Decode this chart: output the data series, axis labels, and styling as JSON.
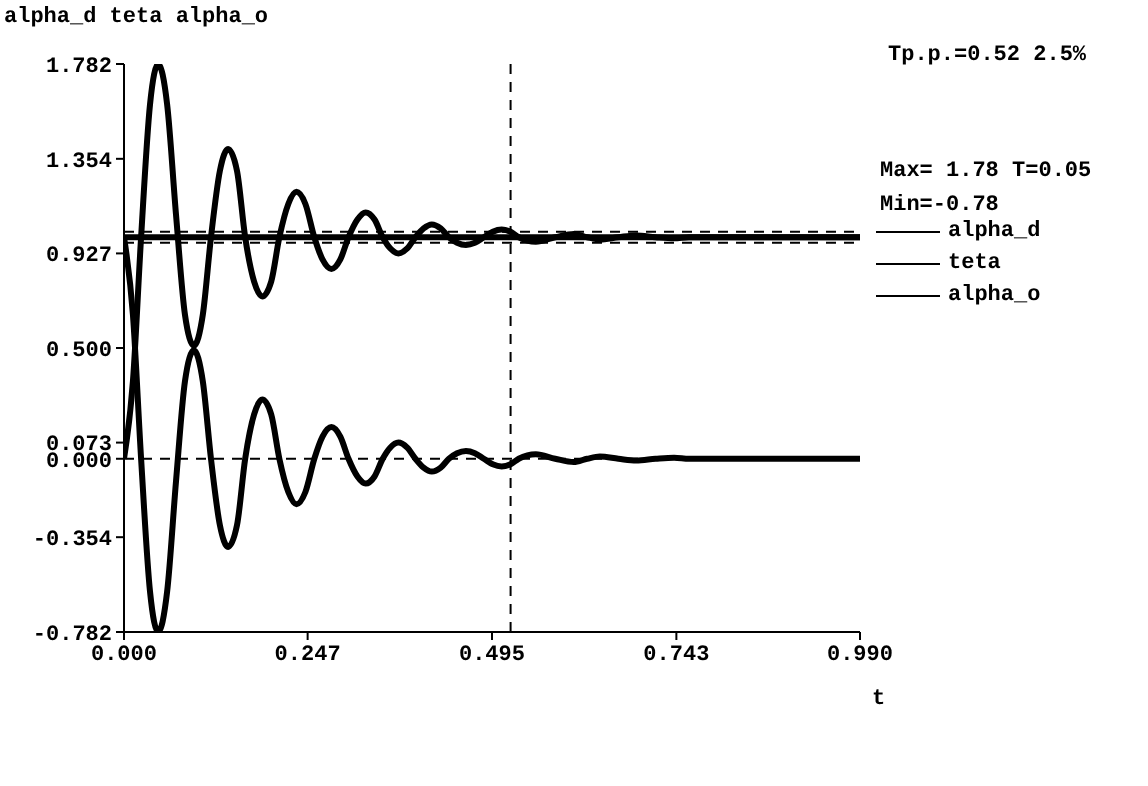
{
  "chart_data": {
    "type": "line",
    "title": "alpha_d teta alpha_o",
    "xlabel": "t",
    "xlim": [
      0,
      0.99
    ],
    "xticks": [
      {
        "value": 0,
        "label": "0.000"
      },
      0.247,
      0.495,
      0.743,
      {
        "value": 0.99,
        "label": "0.990"
      }
    ],
    "ylim": [
      -0.782,
      1.782
    ],
    "yticks": [
      -0.782,
      -0.354,
      {
        "value": 0,
        "label": "0.000"
      },
      0.073,
      {
        "value": 0.5,
        "label": "0.500"
      },
      0.927,
      1.354,
      1.782
    ],
    "legend": "right",
    "marker": "none",
    "line_style": "solid",
    "series": [
      {
        "name": "alpha_d",
        "color": "#000000",
        "x": [
          0,
          0.99
        ],
        "values": [
          1,
          1
        ]
      },
      {
        "name": "teta",
        "color": "#000000",
        "x": [
          0,
          0.012,
          0.023,
          0.035,
          0.046,
          0.058,
          0.07,
          0.082,
          0.094,
          0.106,
          0.117,
          0.129,
          0.14,
          0.152,
          0.163,
          0.175,
          0.186,
          0.198,
          0.209,
          0.221,
          0.232,
          0.244,
          0.256,
          0.267,
          0.279,
          0.291,
          0.302,
          0.314,
          0.325,
          0.337,
          0.348,
          0.358,
          0.369,
          0.381,
          0.392,
          0.403,
          0.414,
          0.426,
          0.437,
          0.448,
          0.46,
          0.472,
          0.484,
          0.496,
          0.508,
          0.52,
          0.531,
          0.554,
          0.58,
          0.605,
          0.623,
          0.64,
          0.665,
          0.689,
          0.715,
          0.74,
          0.76,
          0.99
        ],
        "values": [
          0,
          0.35,
          1,
          1.6,
          1.782,
          1.6,
          1.1,
          0.65,
          0.51,
          0.65,
          1,
          1.3,
          1.398,
          1.3,
          1,
          0.8,
          0.733,
          0.8,
          1,
          1.15,
          1.205,
          1.15,
          1,
          0.9,
          0.857,
          0.9,
          1,
          1.08,
          1.112,
          1.08,
          1,
          0.95,
          0.927,
          0.95,
          1,
          1.04,
          1.058,
          1.04,
          1,
          0.975,
          0.965,
          0.975,
          1,
          1.025,
          1.035,
          1.025,
          1,
          0.98,
          1,
          1.015,
          1,
          0.99,
          1,
          1.008,
          1,
          0.995,
          1,
          1
        ]
      },
      {
        "name": "alpha_o",
        "color": "#000000",
        "x": [
          0,
          0.012,
          0.023,
          0.035,
          0.046,
          0.058,
          0.07,
          0.082,
          0.094,
          0.106,
          0.117,
          0.129,
          0.14,
          0.152,
          0.163,
          0.175,
          0.186,
          0.198,
          0.209,
          0.221,
          0.232,
          0.244,
          0.256,
          0.267,
          0.279,
          0.291,
          0.302,
          0.314,
          0.325,
          0.337,
          0.348,
          0.358,
          0.369,
          0.381,
          0.392,
          0.403,
          0.414,
          0.426,
          0.437,
          0.448,
          0.46,
          0.472,
          0.484,
          0.496,
          0.508,
          0.52,
          0.531,
          0.554,
          0.58,
          0.605,
          0.623,
          0.64,
          0.665,
          0.689,
          0.715,
          0.74,
          0.76,
          0.99
        ],
        "values": [
          1,
          0.65,
          0,
          -0.6,
          -0.782,
          -0.6,
          -0.1,
          0.35,
          0.49,
          0.35,
          0,
          -0.3,
          -0.398,
          -0.3,
          0,
          0.2,
          0.267,
          0.2,
          0,
          -0.15,
          -0.205,
          -0.15,
          0,
          0.1,
          0.143,
          0.1,
          0,
          -0.08,
          -0.112,
          -0.08,
          0,
          0.05,
          0.073,
          0.05,
          0,
          -0.04,
          -0.058,
          -0.04,
          0,
          0.025,
          0.035,
          0.025,
          0,
          -0.025,
          -0.035,
          -0.025,
          0,
          0.02,
          0,
          -0.015,
          0,
          0.01,
          0,
          -0.008,
          0,
          0.005,
          0,
          0
        ]
      }
    ],
    "ref_lines": [
      {
        "axis": "y",
        "value": 0,
        "line_style": "dashed",
        "color": "#000000"
      },
      {
        "axis": "y",
        "value": 0.975,
        "line_style": "dashed",
        "color": "#000000"
      },
      {
        "axis": "y",
        "value": 1.025,
        "line_style": "dashed",
        "color": "#000000"
      },
      {
        "axis": "x",
        "value": 0.52,
        "line_style": "dashed",
        "color": "#000000"
      }
    ],
    "annotations": [
      "Tp.p.=0.52 2.5%",
      "Max= 1.78 T=0.05",
      "Min=-0.78"
    ]
  }
}
